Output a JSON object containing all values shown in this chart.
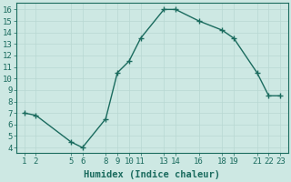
{
  "x": [
    1,
    2,
    5,
    6,
    8,
    9,
    10,
    11,
    13,
    14,
    16,
    18,
    19,
    21,
    22,
    23
  ],
  "y": [
    7,
    6.8,
    4.5,
    4,
    6.5,
    10.5,
    11.5,
    13.5,
    16,
    16,
    15,
    14.2,
    13.5,
    10.5,
    8.5,
    8.5
  ],
  "line_color": "#1a6b5e",
  "marker": "+",
  "marker_color": "#1a6b5e",
  "bg_color": "#cde8e3",
  "grid_color": "#b8d8d2",
  "xlabel": "Humidex (Indice chaleur)",
  "xticks": [
    1,
    2,
    5,
    6,
    8,
    9,
    10,
    11,
    13,
    14,
    16,
    18,
    19,
    21,
    22,
    23
  ],
  "yticks": [
    4,
    5,
    6,
    7,
    8,
    9,
    10,
    11,
    12,
    13,
    14,
    15,
    16
  ],
  "ylim": [
    3.5,
    16.6
  ],
  "xlim": [
    0.3,
    23.7
  ],
  "tick_color": "#1a6b5e",
  "label_color": "#1a6b5e",
  "font_size": 6.5,
  "xlabel_fontsize": 7.5,
  "linewidth": 1.0,
  "markersize": 4,
  "linestyle": "-"
}
